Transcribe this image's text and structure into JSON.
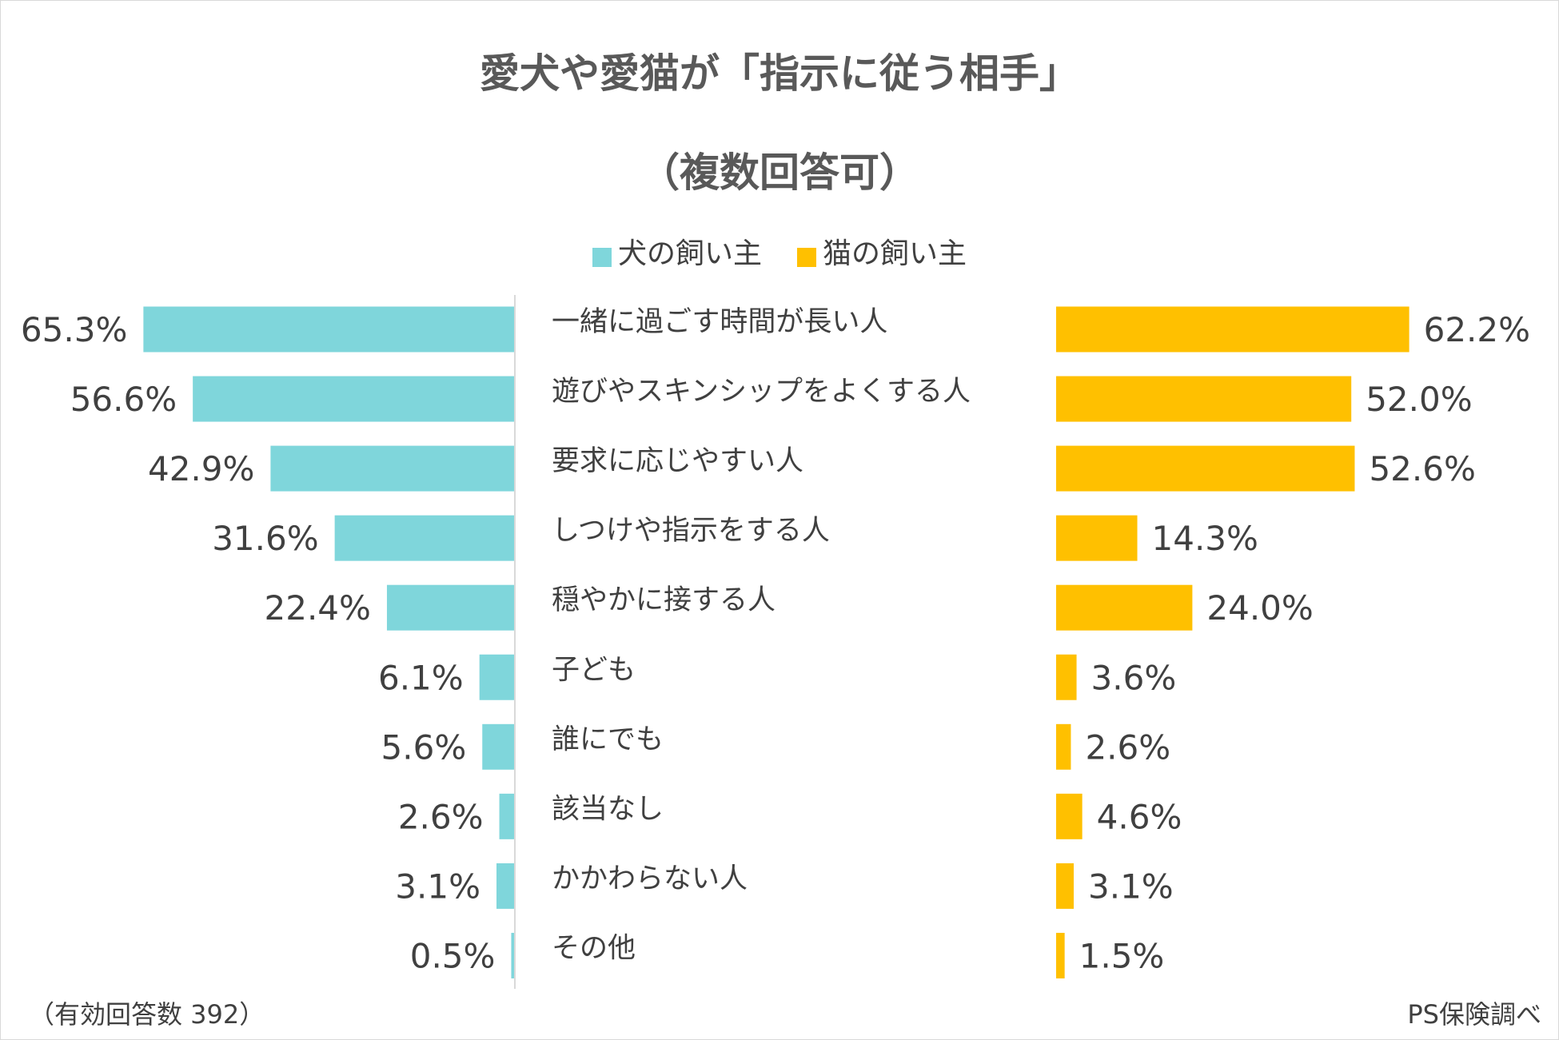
{
  "chart_data": {
    "type": "bar",
    "title": "愛犬や愛猫が「指示に従う相手」",
    "subtitle": "（複数回答可）",
    "categories": [
      "一緒に過ごす時間が長い人",
      "遊びやスキンシップをよくする人",
      "要求に応じやすい人",
      "しつけや指示をする人",
      "穏やかに接する人",
      "子ども",
      "誰にでも",
      "該当なし",
      "かかわらない人",
      "その他"
    ],
    "series": [
      {
        "name": "犬の飼い主",
        "color": "#7FD6DB",
        "values": [
          65.3,
          56.6,
          42.9,
          31.6,
          22.4,
          6.1,
          5.6,
          2.6,
          3.1,
          0.5
        ]
      },
      {
        "name": "猫の飼い主",
        "color": "#FFC000",
        "values": [
          62.2,
          52.0,
          52.6,
          14.3,
          24.0,
          3.6,
          2.6,
          4.6,
          3.1,
          1.5
        ]
      }
    ],
    "value_format": "%",
    "legend_placement": "top",
    "grid": false
  },
  "footer": {
    "note": "（有効回答数 392）",
    "source": "PS保険調べ"
  }
}
